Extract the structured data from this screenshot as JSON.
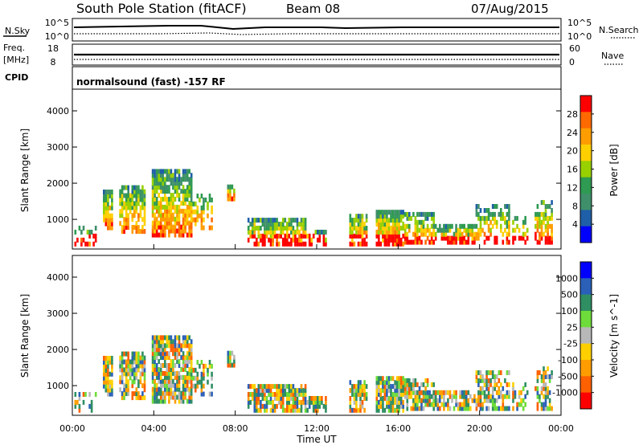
{
  "header": {
    "station": "South Pole Station (fitACF)",
    "beam": "Beam 08",
    "date": "07/Aug/2015"
  },
  "sky_panel": {
    "left_label": "N.Sky",
    "right_label": "N.Search",
    "left_ticks": [
      "10^5",
      "10^0"
    ],
    "right_ticks": [
      "10^5",
      "10^0"
    ]
  },
  "freq_panel": {
    "left_label_1": "Freq.",
    "left_label_2": "[MHz]",
    "right_label": "Nave",
    "left_ticks": [
      "18",
      "8"
    ],
    "right_ticks": [
      "60",
      "0"
    ]
  },
  "cpid_panel": {
    "label": "CPID",
    "text": "normalsound (fast) -157 RF"
  },
  "chart_data": [
    {
      "type": "heatmap",
      "title": "",
      "quantity": "Power",
      "colorbar_label": "Power [dB]",
      "colorbar_ticks": [
        "28",
        "24",
        "20",
        "16",
        "12",
        "8",
        "4"
      ],
      "colorbar_colors": [
        "#ff0000",
        "#ff6a00",
        "#ff9d00",
        "#ffd000",
        "#98d000",
        "#2e9a52",
        "#3f8f6a",
        "#1f5fa8",
        "#0000ff"
      ],
      "ylabel": "Slant Range [km]",
      "y_ticks": [
        "4000",
        "3000",
        "2000",
        "1000"
      ],
      "ylim": [
        180,
        4600
      ],
      "xlim": [
        0,
        24
      ]
    },
    {
      "type": "heatmap",
      "title": "",
      "quantity": "Velocity",
      "colorbar_label": "Velocity [m s^-1]",
      "colorbar_ticks": [
        "1000",
        "500",
        "100",
        "25",
        "-25",
        "-100",
        "-500",
        "-1000"
      ],
      "colorbar_colors": [
        "#0000ff",
        "#2a60b8",
        "#2f8f63",
        "#6edc3a",
        "#b8b8b8",
        "#ffd000",
        "#ff9d00",
        "#ff6000",
        "#ff0000"
      ],
      "ylabel": "Slant Range [km]",
      "y_ticks": [
        "4000",
        "3000",
        "2000",
        "1000"
      ],
      "ylim": [
        180,
        4600
      ],
      "xlim": [
        0,
        24
      ]
    }
  ],
  "x_axis": {
    "ticks": [
      "00:00",
      "04:00",
      "08:00",
      "12:00",
      "16:00",
      "20:00",
      "00:00"
    ],
    "label": "Time UT"
  }
}
